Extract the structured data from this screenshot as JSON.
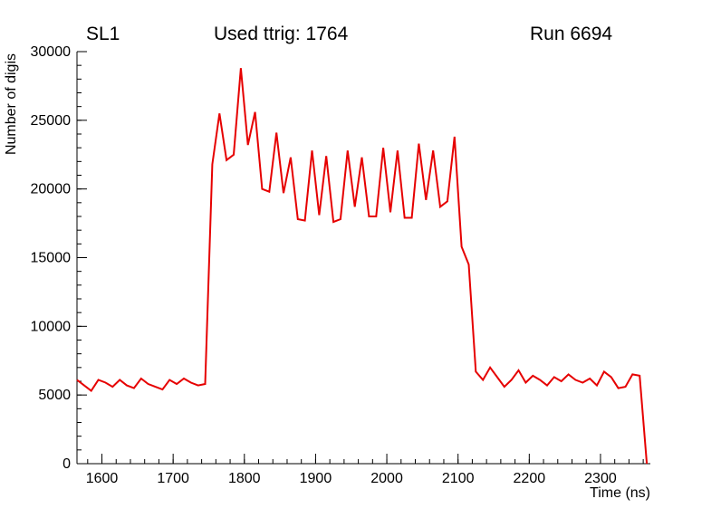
{
  "header": {
    "left_title": "SL1",
    "center_title": "Used ttrig: 1764",
    "right_title": "Run 6694"
  },
  "chart_data": {
    "type": "line",
    "title": "Used ttrig: 1764",
    "xlabel": "Time (ns)",
    "ylabel": "Number of digis",
    "xlim": [
      1565,
      2370
    ],
    "ylim": [
      0,
      30000
    ],
    "xticks": [
      1600,
      1700,
      1800,
      1900,
      2000,
      2100,
      2200,
      2300
    ],
    "yticks": [
      0,
      5000,
      10000,
      15000,
      20000,
      25000,
      30000
    ],
    "x_minor_step": 20,
    "y_minor_step": 1000,
    "grid": false,
    "line_color": "#e60000",
    "series": [
      {
        "name": "digis",
        "x": [
          1565,
          1575,
          1585,
          1595,
          1605,
          1615,
          1625,
          1635,
          1645,
          1655,
          1665,
          1675,
          1685,
          1695,
          1705,
          1715,
          1725,
          1735,
          1745,
          1755,
          1765,
          1775,
          1785,
          1795,
          1805,
          1815,
          1825,
          1835,
          1845,
          1855,
          1865,
          1875,
          1885,
          1895,
          1905,
          1915,
          1925,
          1935,
          1945,
          1955,
          1965,
          1975,
          1985,
          1995,
          2005,
          2015,
          2025,
          2035,
          2045,
          2055,
          2065,
          2075,
          2085,
          2095,
          2105,
          2115,
          2125,
          2135,
          2145,
          2155,
          2165,
          2175,
          2185,
          2195,
          2205,
          2215,
          2225,
          2235,
          2245,
          2255,
          2265,
          2275,
          2285,
          2295,
          2305,
          2315,
          2325,
          2335,
          2345,
          2355,
          2365
        ],
        "y": [
          6100,
          5700,
          5300,
          6100,
          5900,
          5600,
          6100,
          5700,
          5500,
          6200,
          5800,
          5600,
          5400,
          6100,
          5800,
          6200,
          5900,
          5700,
          5800,
          21800,
          25500,
          22100,
          22500,
          28800,
          23200,
          25600,
          20000,
          19800,
          24100,
          19700,
          22300,
          17800,
          17700,
          22800,
          18100,
          22400,
          17600,
          17800,
          22800,
          18700,
          22300,
          18000,
          18000,
          23000,
          18300,
          22800,
          17900,
          17900,
          23300,
          19200,
          22800,
          18700,
          19100,
          23800,
          15800,
          14500,
          6700,
          6100,
          7000,
          6300,
          5600,
          6100,
          6800,
          5900,
          6400,
          6100,
          5700,
          6300,
          6000,
          6500,
          6100,
          5900,
          6200,
          5700,
          6700,
          6300,
          5500,
          5600,
          6500,
          6400,
          0
        ]
      }
    ]
  }
}
